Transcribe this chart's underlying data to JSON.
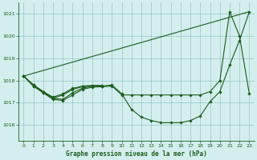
{
  "title": "Graphe pression niveau de la mer (hPa)",
  "bg_color": "#d4eeee",
  "grid_color": "#88bbbb",
  "line_color": "#1a5c1a",
  "text_color": "#1a5c1a",
  "xlim": [
    -0.5,
    23.5
  ],
  "ylim": [
    1015.3,
    1021.5
  ],
  "yticks": [
    1016,
    1017,
    1018,
    1019,
    1020,
    1021
  ],
  "xticks": [
    0,
    1,
    2,
    3,
    4,
    5,
    6,
    7,
    8,
    9,
    10,
    11,
    12,
    13,
    14,
    15,
    16,
    17,
    18,
    19,
    20,
    21,
    22,
    23
  ],
  "line1_x": [
    0,
    1,
    2,
    3,
    4,
    5,
    6,
    7,
    8,
    9,
    10,
    11,
    12,
    13,
    14,
    15,
    16,
    17,
    18,
    19,
    20,
    21,
    22,
    23
  ],
  "line1_y": [
    1018.2,
    1017.8,
    1017.5,
    1017.2,
    1017.15,
    1017.45,
    1017.65,
    1017.75,
    1017.75,
    1017.8,
    1017.4,
    1016.7,
    1016.35,
    1016.2,
    1016.1,
    1016.1,
    1016.1,
    1016.2,
    1016.4,
    1017.05,
    1017.5,
    1018.7,
    1019.8,
    1021.1
  ],
  "line2_x": [
    0,
    1,
    2,
    3,
    4,
    5,
    6,
    7,
    8,
    9,
    10,
    11,
    12,
    13,
    14,
    15,
    16,
    17,
    18,
    19,
    20,
    21,
    22,
    23
  ],
  "line2_y": [
    1018.2,
    1017.75,
    1017.45,
    1017.15,
    1017.1,
    1017.35,
    1017.6,
    1017.7,
    1017.72,
    1017.75,
    1017.35,
    1017.35,
    1017.35,
    1017.35,
    1017.35,
    1017.35,
    1017.35,
    1017.35,
    1017.35,
    1017.5,
    1018.0,
    1021.1,
    1020.0,
    1017.4
  ],
  "line3_x": [
    0,
    1,
    2,
    3,
    4,
    5,
    6,
    7,
    8
  ],
  "line3_y": [
    1018.2,
    1017.75,
    1017.45,
    1017.2,
    1017.35,
    1017.6,
    1017.72,
    1017.75,
    1017.72
  ],
  "line4_x": [
    0,
    1,
    2,
    3,
    4,
    5,
    6,
    7,
    8
  ],
  "line4_y": [
    1018.2,
    1017.8,
    1017.5,
    1017.25,
    1017.4,
    1017.65,
    1017.75,
    1017.78,
    1017.78
  ],
  "straight_line_x": [
    0,
    23
  ],
  "straight_line_y": [
    1018.2,
    1021.1
  ]
}
